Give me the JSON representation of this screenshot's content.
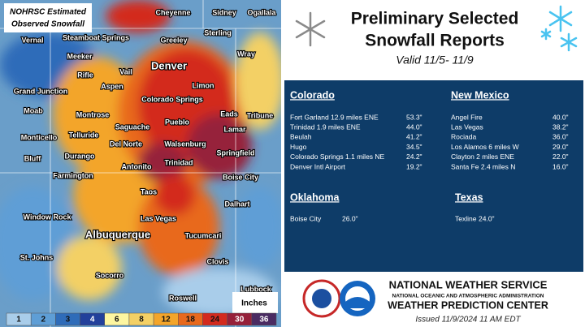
{
  "map": {
    "title_lines": [
      "NOHRSC Estimated",
      "Observed Snowfall"
    ],
    "cities": [
      "Cheyenne",
      "Sidney",
      "Ogallala",
      "Vernal",
      "Steamboat Springs",
      "Greeley",
      "Sterling",
      "Meeker",
      "Wray",
      "Denver",
      "Rifle",
      "Vail",
      "Grand Junction",
      "Aspen",
      "Limon",
      "Colorado Springs",
      "Moab",
      "Montrose",
      "Eads",
      "Tribune",
      "Pueblo",
      "Saguache",
      "Telluride",
      "Lamar",
      "Monticello",
      "Del Norte",
      "Walsenburg",
      "Durango",
      "Springfield",
      "Bluff",
      "Antonito",
      "Trinidad",
      "Farmington",
      "Boise City",
      "Taos",
      "Dalhart",
      "Window Rock",
      "Las Vegas",
      "Albuquerque",
      "Tucumcari",
      "St. Johns",
      "Clovis",
      "Socorro",
      "Roswell",
      "Lubbock"
    ],
    "legend": {
      "values": [
        1,
        2,
        3,
        4,
        6,
        8,
        12,
        18,
        24,
        30,
        36
      ],
      "colors": [
        "#a9cdea",
        "#5e9ed6",
        "#2f6cb9",
        "#22409b",
        "#fdf6a0",
        "#f3d065",
        "#f3a52a",
        "#e8691d",
        "#d32a1e",
        "#96203a",
        "#4a2b62"
      ],
      "unit": "Inches"
    }
  },
  "panel": {
    "title_lines": [
      "Preliminary Selected",
      "Snowfall Reports"
    ],
    "subtitle": "Valid 11/5- 11/9",
    "sections": [
      {
        "state": "Colorado",
        "reports": [
          {
            "location": "Fort Garland 12.9 miles ENE",
            "amount": "53.3\""
          },
          {
            "location": "Trinidad 1.9 miles ENE",
            "amount": "44.0\""
          },
          {
            "location": "Beulah",
            "amount": "41.2\""
          },
          {
            "location": "Hugo",
            "amount": "34.5\""
          },
          {
            "location": "Colorado Springs 1.1 miles NE",
            "amount": "24.2\""
          },
          {
            "location": "Denver Intl Airport",
            "amount": "19.2\""
          }
        ]
      },
      {
        "state": "New Mexico",
        "reports": [
          {
            "location": "Angel Fire",
            "amount": "40.0\""
          },
          {
            "location": "Las Vegas",
            "amount": "38.2\""
          },
          {
            "location": "Rociada",
            "amount": "36.0\""
          },
          {
            "location": "Los Alamos 6 miles W",
            "amount": "29.0\""
          },
          {
            "location": "Clayton 2 miles ENE",
            "amount": "22.0\""
          },
          {
            "location": "Santa Fe 2.4 miles N",
            "amount": "16.0\""
          }
        ]
      },
      {
        "state": "Oklahoma",
        "reports": [
          {
            "location": "Boise City",
            "amount": "26.0\""
          }
        ]
      },
      {
        "state": "Texas",
        "reports": [
          {
            "location": "Texline",
            "amount": "24.0\""
          }
        ]
      }
    ]
  },
  "footer": {
    "agency": "NATIONAL WEATHER SERVICE",
    "parent": "NATIONAL OCEANIC AND ATMOSPHERIC ADMINISTRATION",
    "center": "WEATHER PREDICTION CENTER",
    "issued": "Issued 11/9/2024  11 AM EDT"
  }
}
